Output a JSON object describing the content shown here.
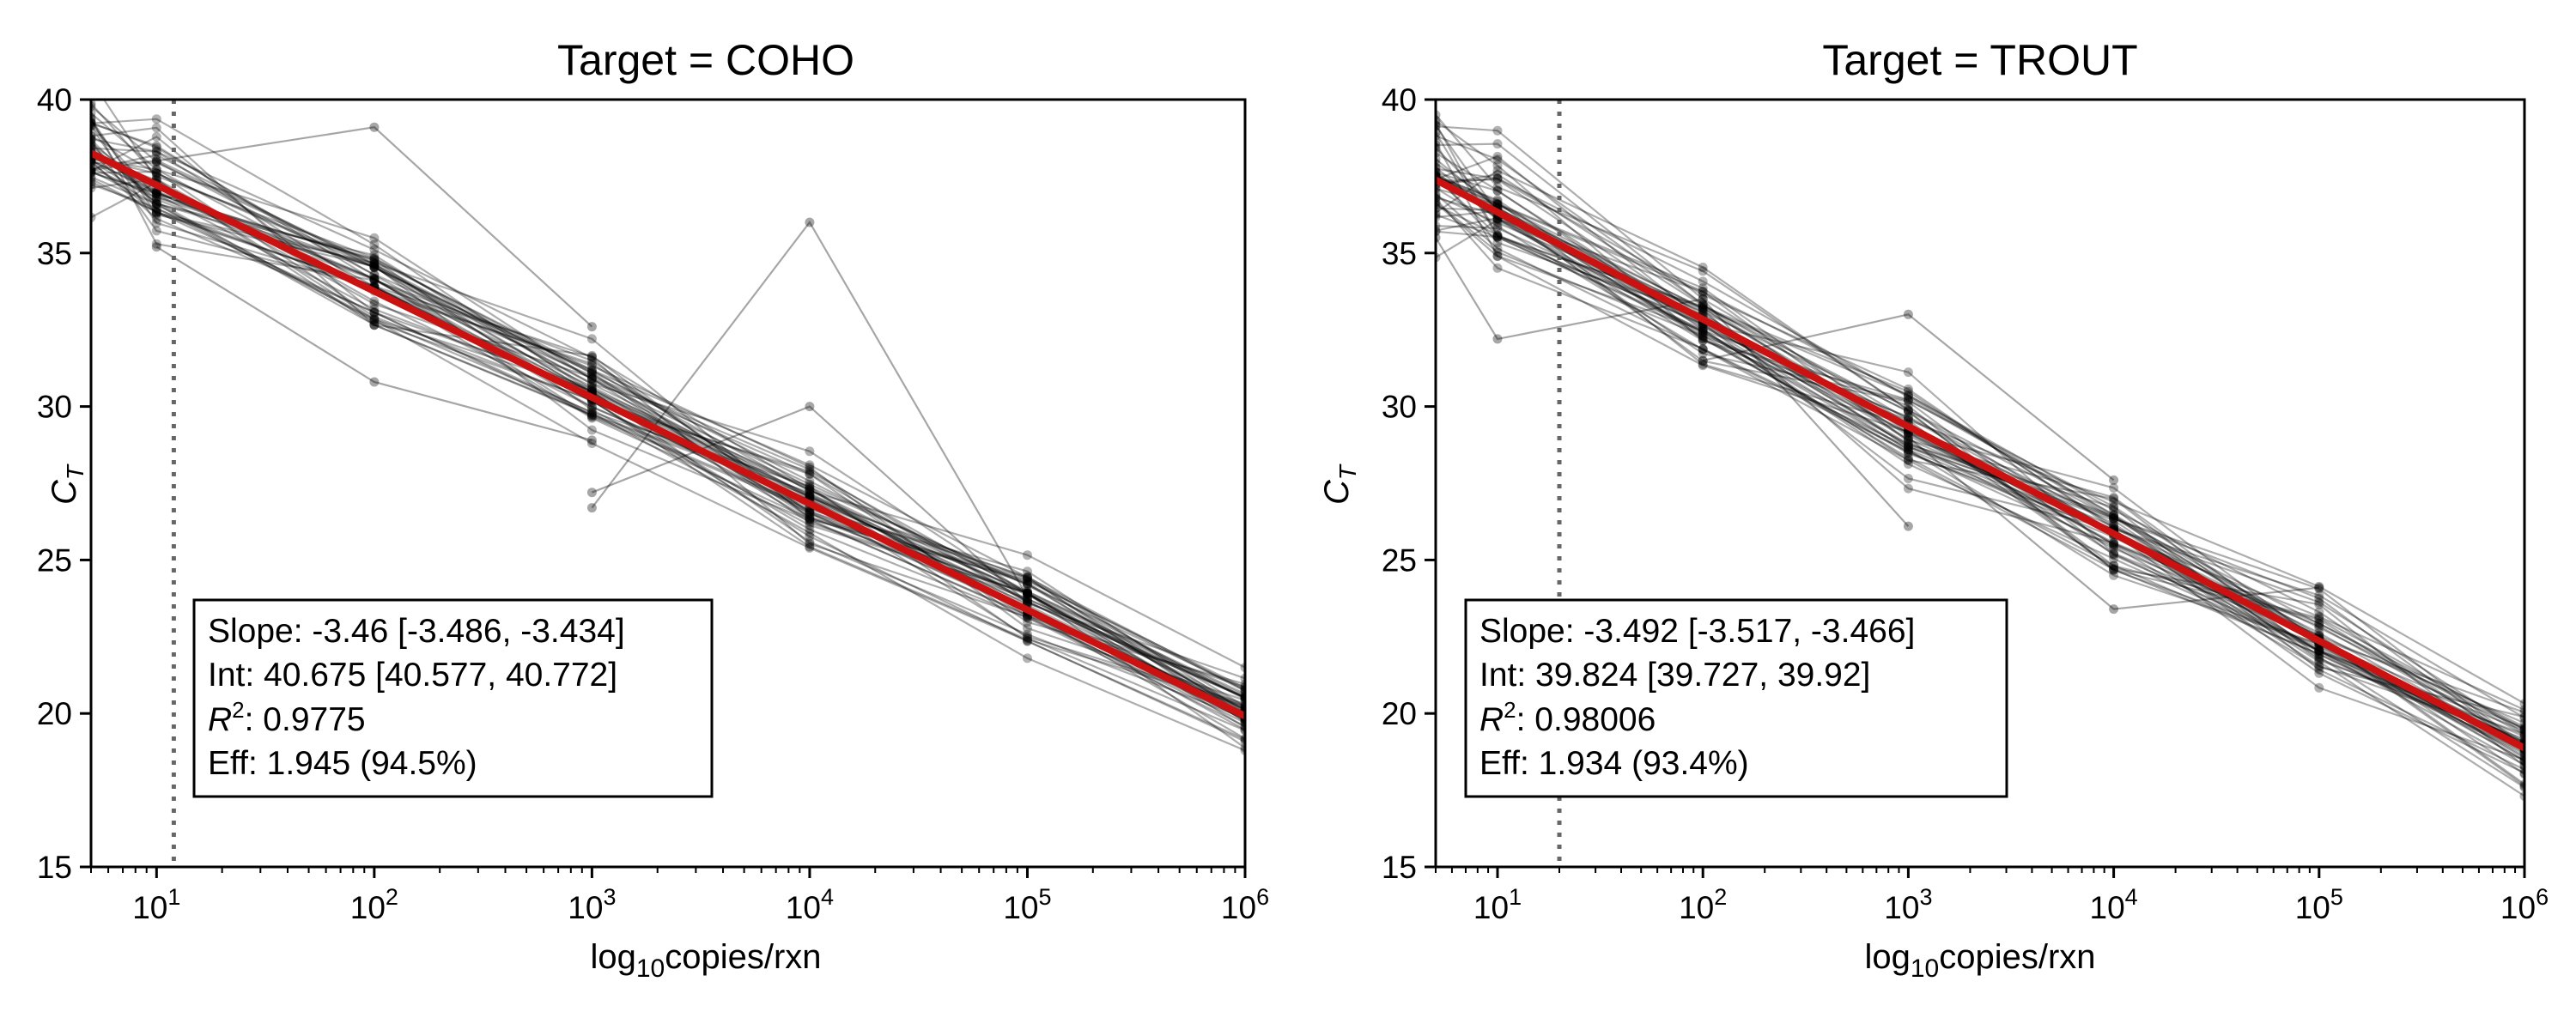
{
  "chart_data": [
    {
      "type": "line",
      "title": "Target = COHO",
      "xlabel": "log10copies/rxn",
      "ylabel": "C_T",
      "x_scale": "log",
      "xlim": [
        5,
        1000000
      ],
      "ylim": [
        15,
        40
      ],
      "x_ticks": [
        10,
        100,
        1000,
        10000,
        100000,
        1000000
      ],
      "y_ticks": [
        15,
        20,
        25,
        30,
        35,
        40
      ],
      "lod_line_x": 12,
      "fit": {
        "slope": -3.46,
        "intercept": 40.675,
        "color": "#cc1111"
      },
      "replicate_color": "#000000",
      "n_replicates": 48,
      "series_mean": {
        "x": [
          5,
          10,
          100,
          1000,
          10000,
          100000,
          1000000
        ],
        "y": [
          38.3,
          37.2,
          33.8,
          30.4,
          26.9,
          23.5,
          20.0
        ]
      },
      "outliers": [
        {
          "x": [
            10,
            100,
            1000
          ],
          "y": [
            38.0,
            39.1,
            32.6
          ]
        },
        {
          "x": [
            1000,
            10000,
            100000
          ],
          "y": [
            26.7,
            36.0,
            23.8
          ]
        },
        {
          "x": [
            1000,
            10000,
            100000
          ],
          "y": [
            27.2,
            30.0,
            23.6
          ]
        },
        {
          "x": [
            10,
            100,
            1000
          ],
          "y": [
            35.2,
            30.8,
            28.9
          ]
        }
      ],
      "legend_position": "bottom-left",
      "stats": {
        "slope": "Slope: -3.46 [-3.486, -3.434]",
        "intercept": "Int: 40.675 [40.577, 40.772]",
        "r2_value": ": 0.9775",
        "efficiency": "Eff: 1.945 (94.5%)"
      }
    },
    {
      "type": "line",
      "title": "Target = TROUT",
      "xlabel": "log10copies/rxn",
      "ylabel": "C_T",
      "x_scale": "log",
      "xlim": [
        5,
        1000000
      ],
      "ylim": [
        15,
        40
      ],
      "x_ticks": [
        10,
        100,
        1000,
        10000,
        100000,
        1000000
      ],
      "y_ticks": [
        15,
        20,
        25,
        30,
        35,
        40
      ],
      "lod_line_x": 20,
      "fit": {
        "slope": -3.492,
        "intercept": 39.824,
        "color": "#cc1111"
      },
      "replicate_color": "#000000",
      "n_replicates": 48,
      "series_mean": {
        "x": [
          5,
          10,
          100,
          1000,
          10000,
          100000,
          1000000
        ],
        "y": [
          37.4,
          36.3,
          32.8,
          29.3,
          25.8,
          22.3,
          18.9
        ]
      },
      "outliers": [
        {
          "x": [
            5,
            10,
            100,
            1000
          ],
          "y": [
            35.5,
            32.2,
            33.5,
            26.1
          ]
        },
        {
          "x": [
            100,
            1000,
            10000
          ],
          "y": [
            31.5,
            33.0,
            27.6
          ]
        },
        {
          "x": [
            1000,
            10000,
            100000
          ],
          "y": [
            29.0,
            23.4,
            24.1
          ]
        }
      ],
      "legend_position": "bottom-left",
      "stats": {
        "slope": "Slope: -3.492 [-3.517, -3.466]",
        "intercept": "Int: 39.824 [39.727, 39.92]",
        "r2_value": ": 0.98006",
        "efficiency": "Eff: 1.934 (93.4%)"
      }
    }
  ]
}
